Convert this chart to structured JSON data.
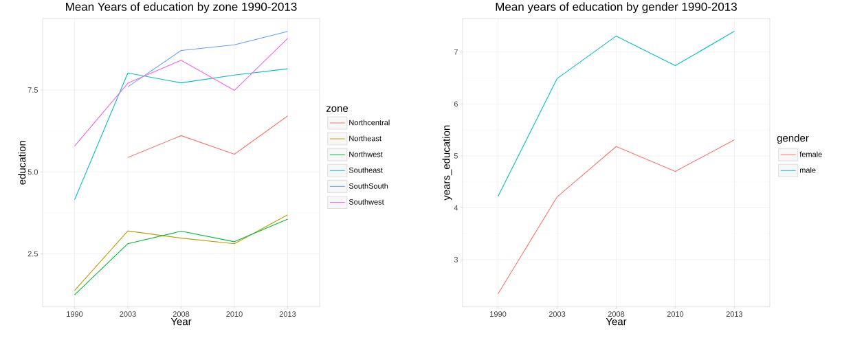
{
  "chart_data": [
    {
      "type": "line",
      "title": "Mean Years of education by zone 1990-2013",
      "xlabel": "Year",
      "ylabel": "education",
      "legend_title": "zone",
      "categories": [
        "1990",
        "2003",
        "2008",
        "2010",
        "2013"
      ],
      "series": [
        {
          "name": "Northcentral",
          "color": "#F8766D",
          "values": [
            null,
            5.44,
            6.11,
            5.54,
            6.71
          ]
        },
        {
          "name": "Northeast",
          "color": "#B79F00",
          "values": [
            1.38,
            3.2,
            2.98,
            2.81,
            3.69
          ]
        },
        {
          "name": "Northwest",
          "color": "#00BA38",
          "values": [
            1.25,
            2.81,
            3.19,
            2.87,
            3.56
          ]
        },
        {
          "name": "Southeast",
          "color": "#00BFC4",
          "values": [
            4.15,
            8.02,
            7.72,
            7.96,
            8.15
          ]
        },
        {
          "name": "SouthSouth",
          "color": "#619CFF",
          "values": [
            null,
            7.6,
            8.71,
            8.88,
            9.29
          ]
        },
        {
          "name": "Southwest",
          "color": "#F564E3",
          "values": [
            5.79,
            7.71,
            8.41,
            7.49,
            9.08
          ]
        }
      ],
      "ylim": [
        0.88,
        9.69
      ],
      "yticks": [
        2.5,
        {
          "value": 5,
          "label": "5.0"
        },
        7.5
      ],
      "grid": true,
      "legend": "right"
    },
    {
      "type": "line",
      "title": "Mean years of education by gender 1990-2013",
      "xlabel": "Year",
      "ylabel": "years_education",
      "legend_title": "gender",
      "categories": [
        "1990",
        "2003",
        "2008",
        "2010",
        "2013"
      ],
      "series": [
        {
          "name": "female",
          "color": "#F8766D",
          "values": [
            2.34,
            4.21,
            5.18,
            4.7,
            5.31
          ]
        },
        {
          "name": "male",
          "color": "#00BFC4",
          "values": [
            4.22,
            6.49,
            7.31,
            6.74,
            7.4
          ]
        }
      ],
      "ylim": [
        2.09,
        7.65
      ],
      "yticks": [
        3,
        4,
        5,
        6,
        7
      ],
      "grid": true,
      "legend": "right"
    }
  ]
}
